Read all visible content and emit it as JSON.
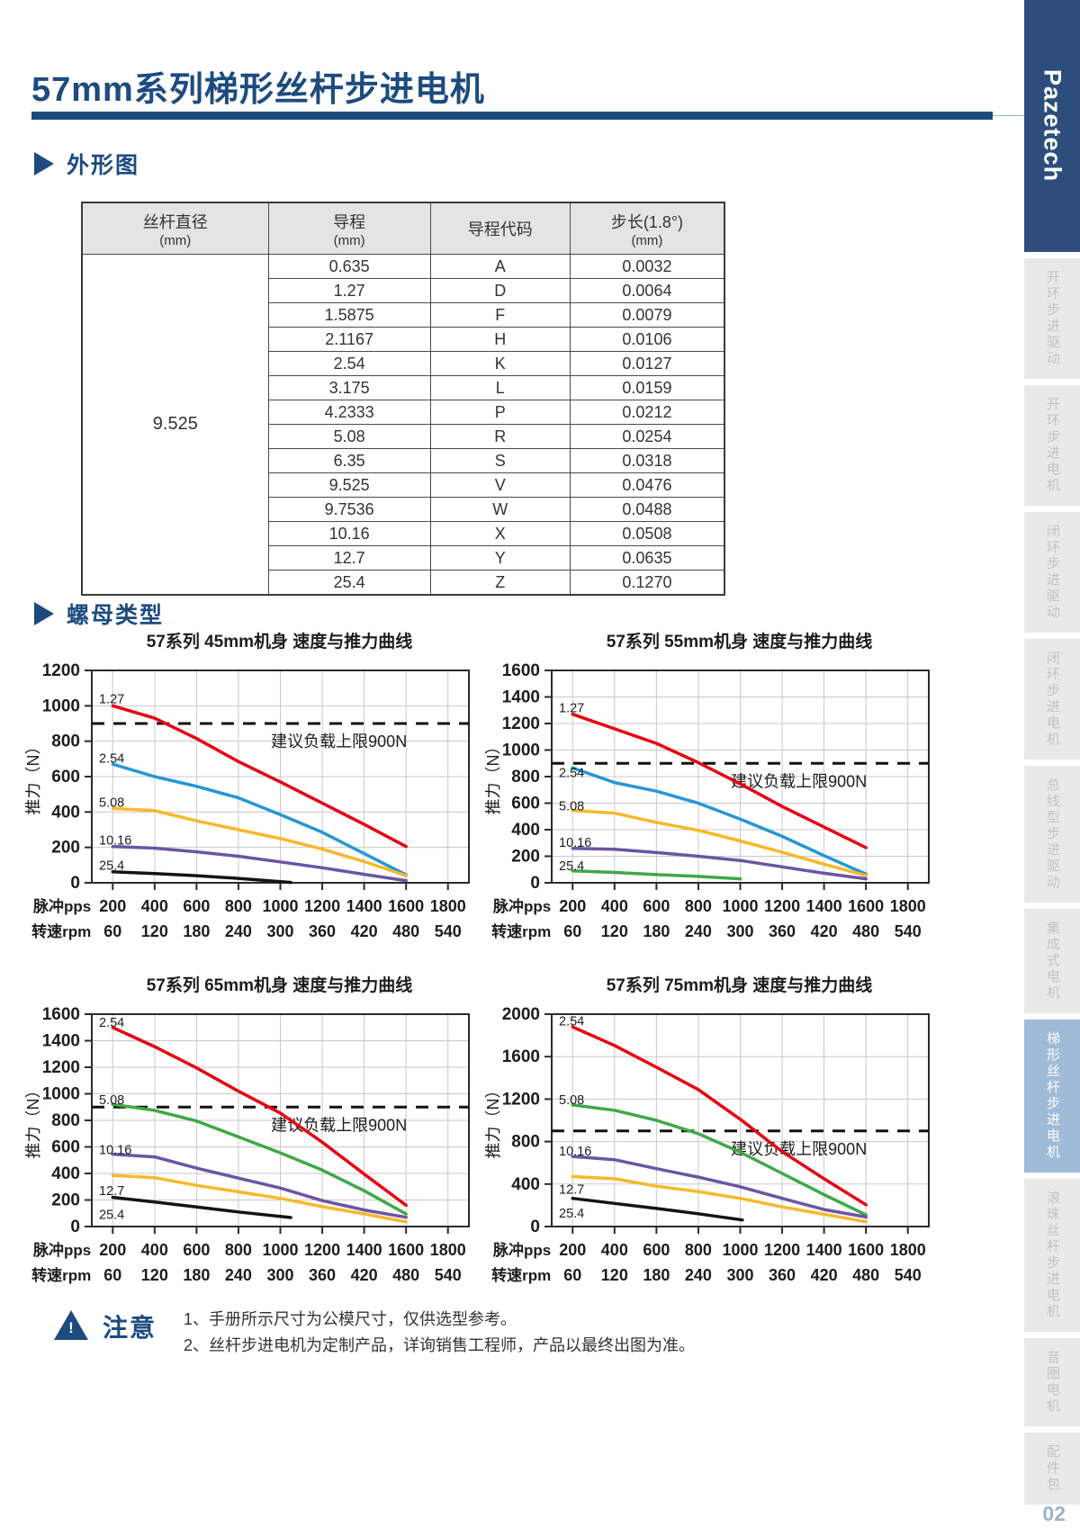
{
  "header": {
    "title": "57mm系列梯形丝杆步进电机"
  },
  "logo": {
    "text": "Pazetech"
  },
  "sections": {
    "outline_label": "外形图",
    "nut_label": "螺母类型"
  },
  "lead_table": {
    "col_headers": [
      {
        "main": "丝杆直径",
        "sub": "(mm)"
      },
      {
        "main": "导程",
        "sub": "(mm)"
      },
      {
        "main": "导程代码",
        "sub": ""
      },
      {
        "main": "步长(1.8°)",
        "sub": "(mm)"
      }
    ],
    "screw_diameter": "9.525",
    "rows": [
      {
        "lead": "0.635",
        "code": "A",
        "step": "0.0032"
      },
      {
        "lead": "1.27",
        "code": "D",
        "step": "0.0064"
      },
      {
        "lead": "1.5875",
        "code": "F",
        "step": "0.0079"
      },
      {
        "lead": "2.1167",
        "code": "H",
        "step": "0.0106"
      },
      {
        "lead": "2.54",
        "code": "K",
        "step": "0.0127"
      },
      {
        "lead": "3.175",
        "code": "L",
        "step": "0.0159"
      },
      {
        "lead": "4.2333",
        "code": "P",
        "step": "0.0212"
      },
      {
        "lead": "5.08",
        "code": "R",
        "step": "0.0254"
      },
      {
        "lead": "6.35",
        "code": "S",
        "step": "0.0318"
      },
      {
        "lead": "9.525",
        "code": "V",
        "step": "0.0476"
      },
      {
        "lead": "9.7536",
        "code": "W",
        "step": "0.0488"
      },
      {
        "lead": "10.16",
        "code": "X",
        "step": "0.0508"
      },
      {
        "lead": "12.7",
        "code": "Y",
        "step": "0.0635"
      },
      {
        "lead": "25.4",
        "code": "Z",
        "step": "0.1270"
      }
    ]
  },
  "sidebar": {
    "items": [
      {
        "label": "开环步进驱动",
        "active": false
      },
      {
        "label": "开环步进电机",
        "active": false
      },
      {
        "label": "闭环步进驱动",
        "active": false
      },
      {
        "label": "闭环步进电机",
        "active": false
      },
      {
        "label": "总线型步进驱动",
        "active": false
      },
      {
        "label": "集成式电机",
        "active": false
      },
      {
        "label": "梯形丝杆步进电机",
        "active": true
      },
      {
        "label": "滚珠丝杆步进电机",
        "active": false
      },
      {
        "label": "音圈电机",
        "active": false
      },
      {
        "label": "配件包",
        "active": false
      }
    ],
    "page_number": "02"
  },
  "notice": {
    "icon_mark": "!",
    "label": "注意",
    "lines": [
      "1、手册所示尺寸为公模尺寸，仅供选型参考。",
      "2、丝杆步进电机为定制产品，详询销售工程师，产品以最终出图为准。"
    ]
  },
  "chart_data": [
    {
      "type": "line",
      "title": "57系列 45mm机身 速度与推力曲线",
      "ylabel": "推力（N）",
      "ylim": [
        0,
        1200
      ],
      "ytick_step": 200,
      "grid": true,
      "x_row_labels": {
        "pps": "脉冲pps",
        "rpm": "转速rpm"
      },
      "x_pps_ticks": [
        200,
        400,
        600,
        800,
        1000,
        1200,
        1400,
        1600,
        1800
      ],
      "x_rpm_ticks": [
        60,
        120,
        180,
        240,
        300,
        360,
        420,
        480,
        540
      ],
      "limit_line": {
        "value": 900,
        "label": "建议负载上限900N"
      },
      "series": [
        {
          "name": "1.27",
          "color": "#E60012",
          "label_y": 1040,
          "points": [
            [
              200,
              1000
            ],
            [
              400,
              930
            ],
            [
              600,
              815
            ],
            [
              800,
              685
            ],
            [
              1000,
              570
            ],
            [
              1200,
              450
            ],
            [
              1400,
              330
            ],
            [
              1600,
              205
            ]
          ]
        },
        {
          "name": "2.54",
          "color": "#2795D6",
          "label_y": 705,
          "points": [
            [
              200,
              670
            ],
            [
              400,
              600
            ],
            [
              600,
              545
            ],
            [
              800,
              480
            ],
            [
              1000,
              385
            ],
            [
              1200,
              285
            ],
            [
              1400,
              165
            ],
            [
              1600,
              45
            ]
          ]
        },
        {
          "name": "5.08",
          "color": "#F6B92B",
          "label_y": 455,
          "points": [
            [
              200,
              420
            ],
            [
              400,
              408
            ],
            [
              600,
              350
            ],
            [
              800,
              300
            ],
            [
              1000,
              250
            ],
            [
              1200,
              190
            ],
            [
              1400,
              120
            ],
            [
              1600,
              40
            ]
          ]
        },
        {
          "name": "10.16",
          "color": "#6C54A4",
          "label_y": 242,
          "points": [
            [
              200,
              205
            ],
            [
              400,
              196
            ],
            [
              600,
              175
            ],
            [
              800,
              150
            ],
            [
              1000,
              118
            ],
            [
              1200,
              85
            ],
            [
              1400,
              48
            ],
            [
              1600,
              12
            ]
          ]
        },
        {
          "name": "25.4",
          "color": "#141414",
          "label_y": 100,
          "points": [
            [
              200,
              62
            ],
            [
              400,
              52
            ],
            [
              600,
              40
            ],
            [
              800,
              25
            ],
            [
              1050,
              2
            ]
          ]
        }
      ]
    },
    {
      "type": "line",
      "title": "57系列 55mm机身 速度与推力曲线",
      "ylabel": "推力（N）",
      "ylim": [
        0,
        1600
      ],
      "ytick_step": 200,
      "grid": true,
      "x_row_labels": {
        "pps": "脉冲pps",
        "rpm": "转速rpm"
      },
      "x_pps_ticks": [
        200,
        400,
        600,
        800,
        1000,
        1200,
        1400,
        1600,
        1800
      ],
      "x_rpm_ticks": [
        60,
        120,
        180,
        240,
        300,
        360,
        420,
        480,
        540
      ],
      "limit_line": {
        "value": 900,
        "label": "建议负载上限900N"
      },
      "series": [
        {
          "name": "1.27",
          "color": "#E60012",
          "label_y": 1320,
          "points": [
            [
              200,
              1270
            ],
            [
              400,
              1160
            ],
            [
              600,
              1050
            ],
            [
              800,
              905
            ],
            [
              1000,
              745
            ],
            [
              1200,
              575
            ],
            [
              1400,
              420
            ],
            [
              1600,
              265
            ]
          ]
        },
        {
          "name": "2.54",
          "color": "#2795D6",
          "label_y": 830,
          "points": [
            [
              200,
              865
            ],
            [
              400,
              755
            ],
            [
              600,
              690
            ],
            [
              800,
              600
            ],
            [
              1000,
              480
            ],
            [
              1200,
              350
            ],
            [
              1400,
              205
            ],
            [
              1600,
              65
            ]
          ]
        },
        {
          "name": "5.08",
          "color": "#F6B92B",
          "label_y": 580,
          "points": [
            [
              200,
              545
            ],
            [
              400,
              525
            ],
            [
              600,
              455
            ],
            [
              800,
              395
            ],
            [
              1000,
              315
            ],
            [
              1200,
              230
            ],
            [
              1400,
              140
            ],
            [
              1600,
              55
            ]
          ]
        },
        {
          "name": "10.16",
          "color": "#6C54A4",
          "label_y": 305,
          "points": [
            [
              200,
              260
            ],
            [
              400,
              252
            ],
            [
              600,
              228
            ],
            [
              800,
              200
            ],
            [
              1000,
              168
            ],
            [
              1200,
              120
            ],
            [
              1400,
              72
            ],
            [
              1600,
              30
            ]
          ]
        },
        {
          "name": "25.4",
          "color": "#3FA848",
          "label_y": 128,
          "points": [
            [
              200,
              90
            ],
            [
              400,
              78
            ],
            [
              600,
              62
            ],
            [
              800,
              48
            ],
            [
              1000,
              30
            ]
          ]
        }
      ]
    },
    {
      "type": "line",
      "title": "57系列 65mm机身 速度与推力曲线",
      "ylabel": "推力（N）",
      "ylim": [
        0,
        1600
      ],
      "ytick_step": 200,
      "grid": true,
      "x_row_labels": {
        "pps": "脉冲pps",
        "rpm": "转速rpm"
      },
      "x_pps_ticks": [
        200,
        400,
        600,
        800,
        1000,
        1200,
        1400,
        1600,
        1800
      ],
      "x_rpm_ticks": [
        60,
        120,
        180,
        240,
        300,
        360,
        420,
        480,
        540
      ],
      "limit_line": {
        "value": 900,
        "label": "建议负载上限900N"
      },
      "series": [
        {
          "name": "2.54",
          "color": "#E60012",
          "label_y": 1540,
          "points": [
            [
              200,
              1500
            ],
            [
              400,
              1355
            ],
            [
              600,
              1195
            ],
            [
              800,
              1020
            ],
            [
              1000,
              855
            ],
            [
              1200,
              635
            ],
            [
              1400,
              395
            ],
            [
              1600,
              160
            ]
          ]
        },
        {
          "name": "5.08",
          "color": "#3FA848",
          "label_y": 955,
          "points": [
            [
              200,
              920
            ],
            [
              400,
              875
            ],
            [
              600,
              795
            ],
            [
              800,
              675
            ],
            [
              1000,
              555
            ],
            [
              1200,
              425
            ],
            [
              1400,
              270
            ],
            [
              1600,
              95
            ]
          ]
        },
        {
          "name": "10.16",
          "color": "#6C54A4",
          "label_y": 580,
          "points": [
            [
              200,
              545
            ],
            [
              400,
              525
            ],
            [
              600,
              440
            ],
            [
              800,
              365
            ],
            [
              1000,
              290
            ],
            [
              1200,
              195
            ],
            [
              1400,
              125
            ],
            [
              1600,
              70
            ]
          ]
        },
        {
          "name": "12.7",
          "color": "#F6B92B",
          "label_y": 272,
          "points": [
            [
              200,
              385
            ],
            [
              400,
              368
            ],
            [
              600,
              310
            ],
            [
              800,
              262
            ],
            [
              1000,
              212
            ],
            [
              1200,
              150
            ],
            [
              1400,
              95
            ],
            [
              1600,
              35
            ]
          ]
        },
        {
          "name": "25.4",
          "color": "#141414",
          "label_y": 92,
          "points": [
            [
              200,
              220
            ],
            [
              400,
              185
            ],
            [
              600,
              148
            ],
            [
              800,
              110
            ],
            [
              1050,
              68
            ]
          ]
        }
      ]
    },
    {
      "type": "line",
      "title": "57系列 75mm机身 速度与推力曲线",
      "ylabel": "推力（N）",
      "ylim": [
        0,
        2000
      ],
      "ytick_step": 400,
      "grid": true,
      "x_row_labels": {
        "pps": "脉冲pps",
        "rpm": "转速rpm"
      },
      "x_pps_ticks": [
        200,
        400,
        600,
        800,
        1000,
        1200,
        1400,
        1600,
        1800
      ],
      "x_rpm_ticks": [
        60,
        120,
        180,
        240,
        300,
        360,
        420,
        480,
        540
      ],
      "limit_line": {
        "value": 900,
        "label": "建议负载上限900N"
      },
      "series": [
        {
          "name": "2.54",
          "color": "#E60012",
          "label_y": 1935,
          "points": [
            [
              200,
              1880
            ],
            [
              400,
              1705
            ],
            [
              600,
              1500
            ],
            [
              800,
              1290
            ],
            [
              1000,
              1010
            ],
            [
              1200,
              705
            ],
            [
              1400,
              450
            ],
            [
              1600,
              205
            ]
          ]
        },
        {
          "name": "5.08",
          "color": "#3FA848",
          "label_y": 1195,
          "points": [
            [
              200,
              1145
            ],
            [
              400,
              1095
            ],
            [
              600,
              1000
            ],
            [
              800,
              875
            ],
            [
              1000,
              700
            ],
            [
              1200,
              500
            ],
            [
              1400,
              300
            ],
            [
              1600,
              110
            ]
          ]
        },
        {
          "name": "10.16",
          "color": "#6C54A4",
          "label_y": 710,
          "points": [
            [
              200,
              660
            ],
            [
              400,
              630
            ],
            [
              600,
              545
            ],
            [
              800,
              465
            ],
            [
              1000,
              375
            ],
            [
              1200,
              265
            ],
            [
              1400,
              160
            ],
            [
              1600,
              90
            ]
          ]
        },
        {
          "name": "12.7",
          "color": "#F6B92B",
          "label_y": 352,
          "points": [
            [
              200,
              470
            ],
            [
              400,
              450
            ],
            [
              600,
              380
            ],
            [
              800,
              330
            ],
            [
              1000,
              265
            ],
            [
              1200,
              185
            ],
            [
              1400,
              115
            ],
            [
              1600,
              45
            ]
          ]
        },
        {
          "name": "25.4",
          "color": "#141414",
          "label_y": 128,
          "points": [
            [
              200,
              265
            ],
            [
              400,
              218
            ],
            [
              600,
              170
            ],
            [
              800,
              120
            ],
            [
              1010,
              62
            ]
          ]
        }
      ]
    }
  ]
}
